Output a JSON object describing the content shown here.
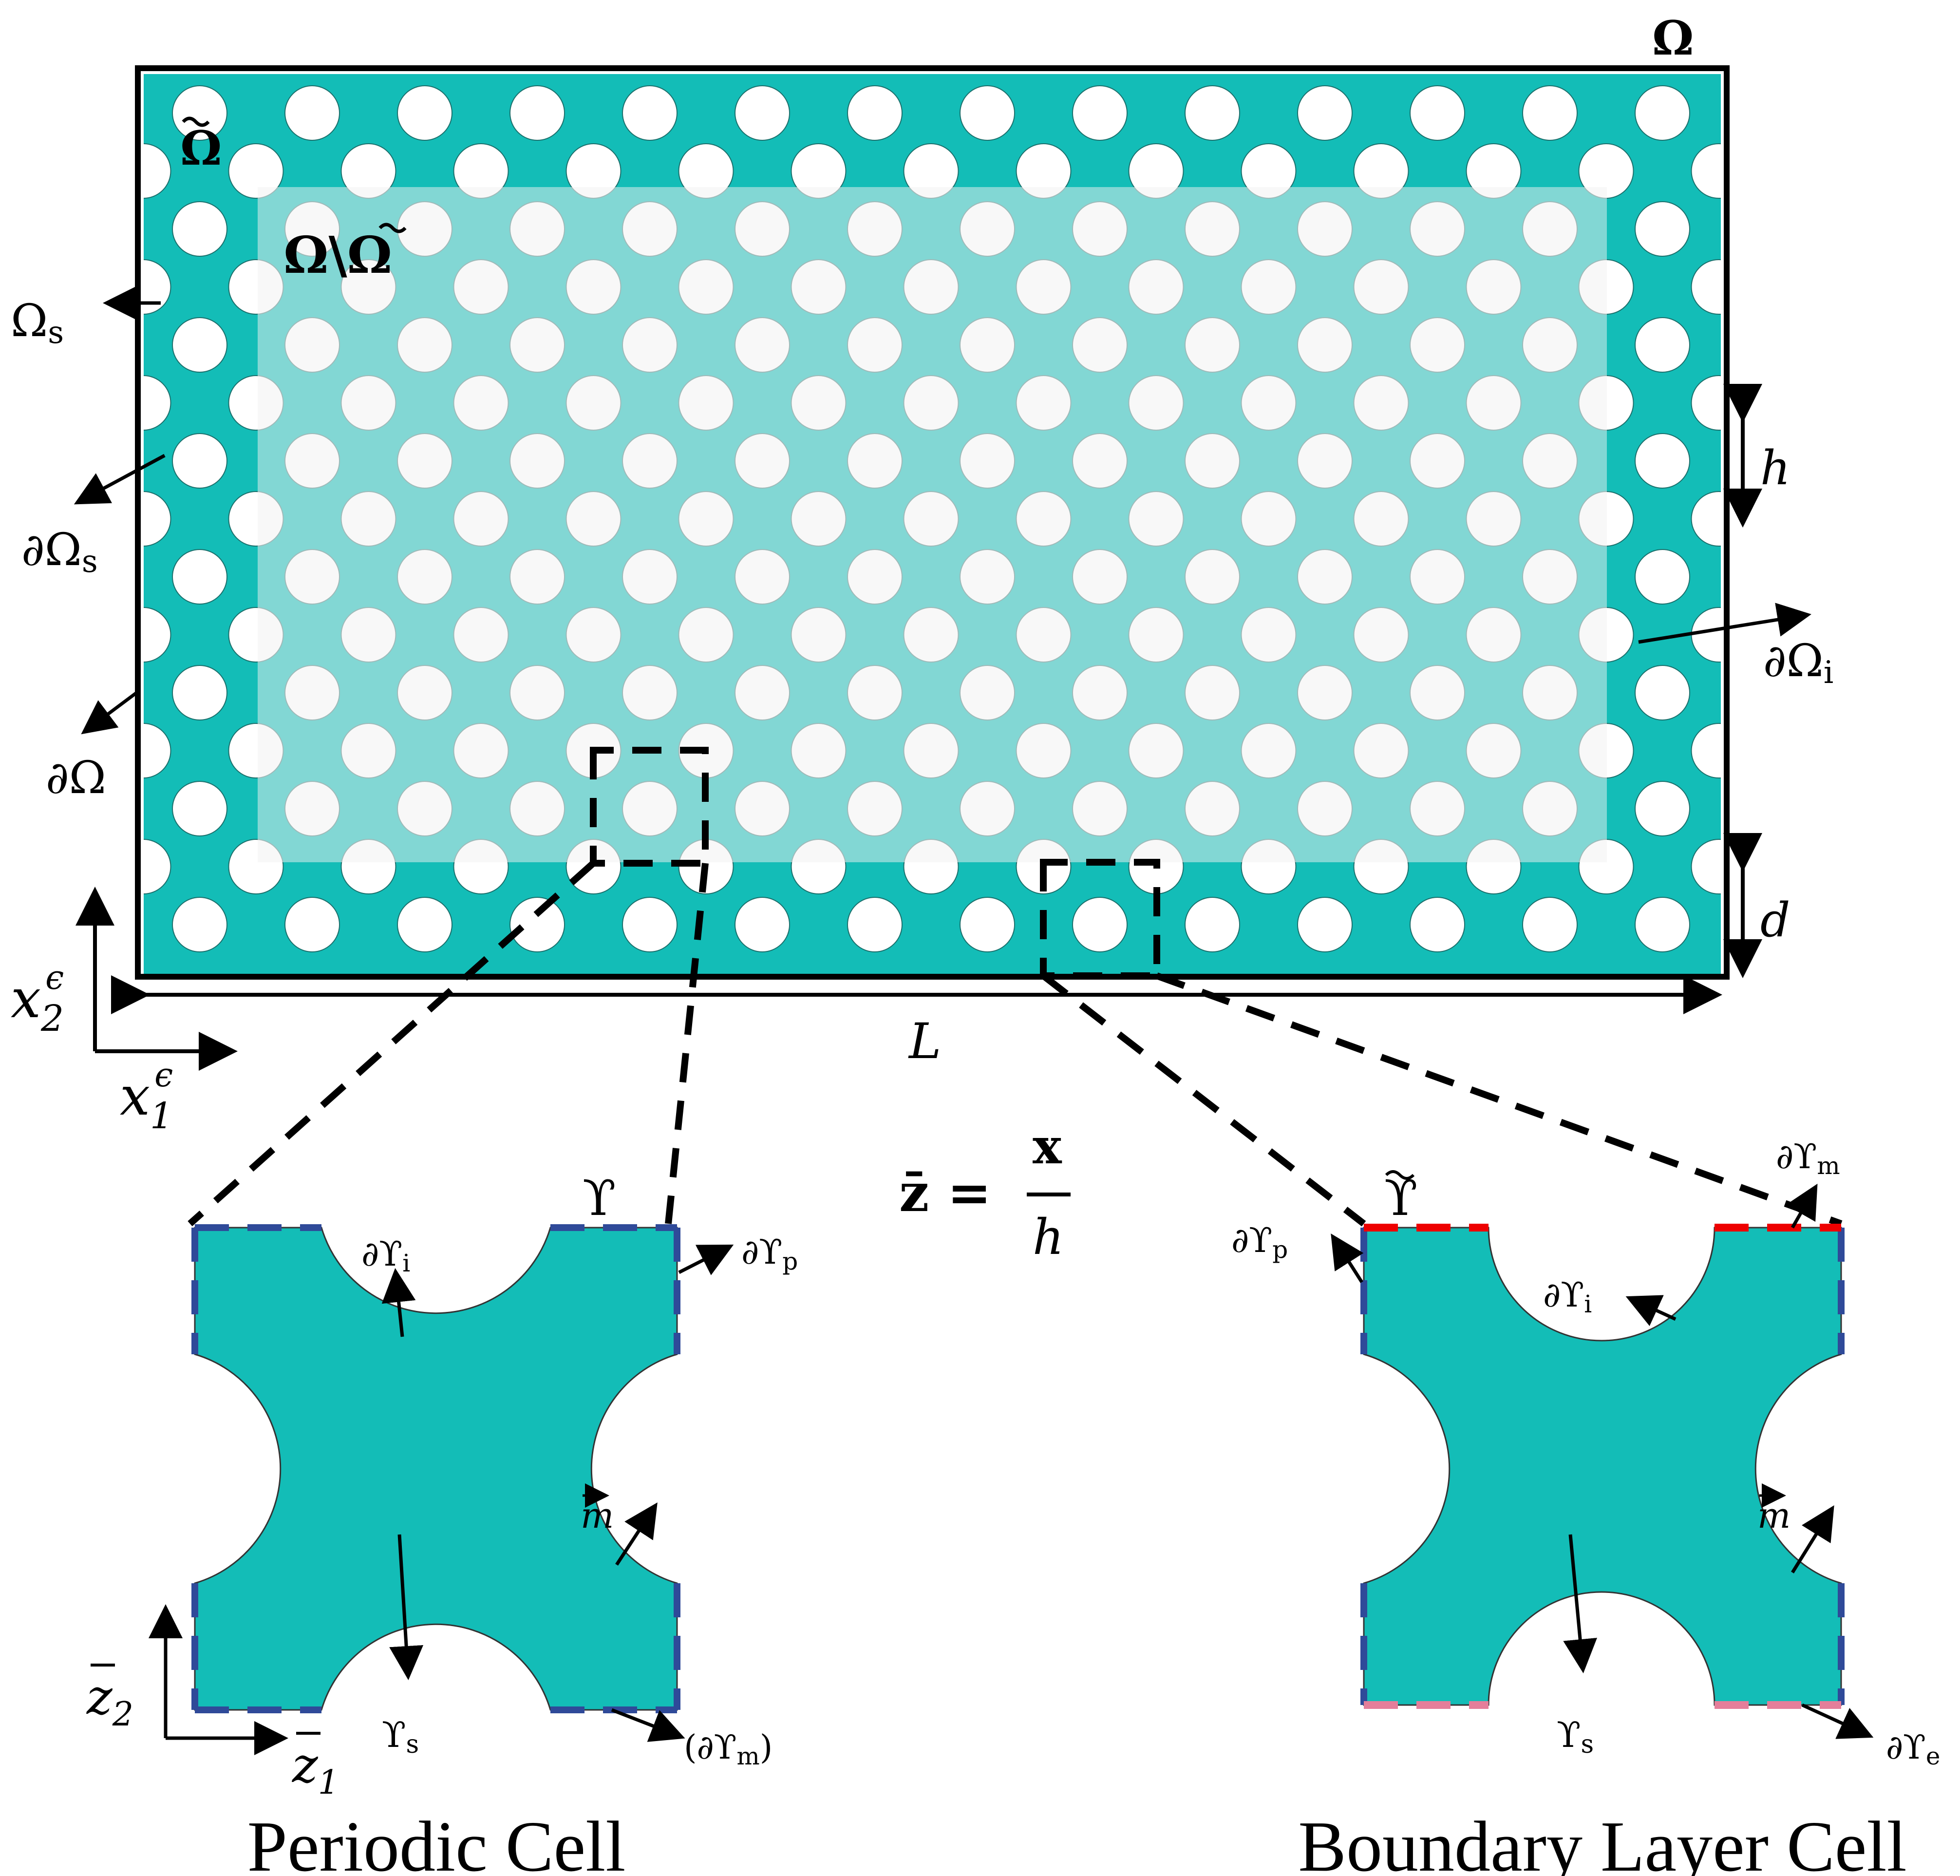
{
  "colors": {
    "solid": "#13bdb7",
    "inner": "#82d7d4",
    "hole": "#ffffff",
    "hole_inner": "#f8f8f8",
    "periodic_edge": "#2f4a99",
    "boundary_top_edge": "#ee0000",
    "boundary_bottom_edge": "#e47e9a",
    "line": "#000000"
  },
  "domain": {
    "omega": "Ω",
    "omega_tilde": "Ω",
    "omega_minus": "Ω\\Ω",
    "omega_s": "Ωs",
    "d_omega_s": "∂Ωs",
    "d_omega": "∂Ω",
    "d_omega_i": "∂Ωi",
    "h": "h",
    "d": "d",
    "L": "L",
    "x1": "x1ϵ",
    "x2": "x2ϵ"
  },
  "scaling": {
    "lhs": "z̄ =",
    "numerator": "x",
    "denominator": "h"
  },
  "periodic_cell": {
    "caption": "Periodic Cell",
    "upsilon": "ϒ",
    "d_i": "∂ϒi",
    "d_p": "∂ϒp",
    "m": "m",
    "s": "ϒs",
    "d_m": "(∂ϒm)",
    "z1": "z̄1",
    "z2": "z̄2"
  },
  "boundary_cell": {
    "caption": "Boundary Layer Cell",
    "upsilon": "ϒ",
    "d_p": "∂ϒp",
    "d_i": "∂ϒi",
    "d_m": "∂ϒm",
    "m": "m",
    "s": "ϒs",
    "d_e": "∂ϒe"
  }
}
